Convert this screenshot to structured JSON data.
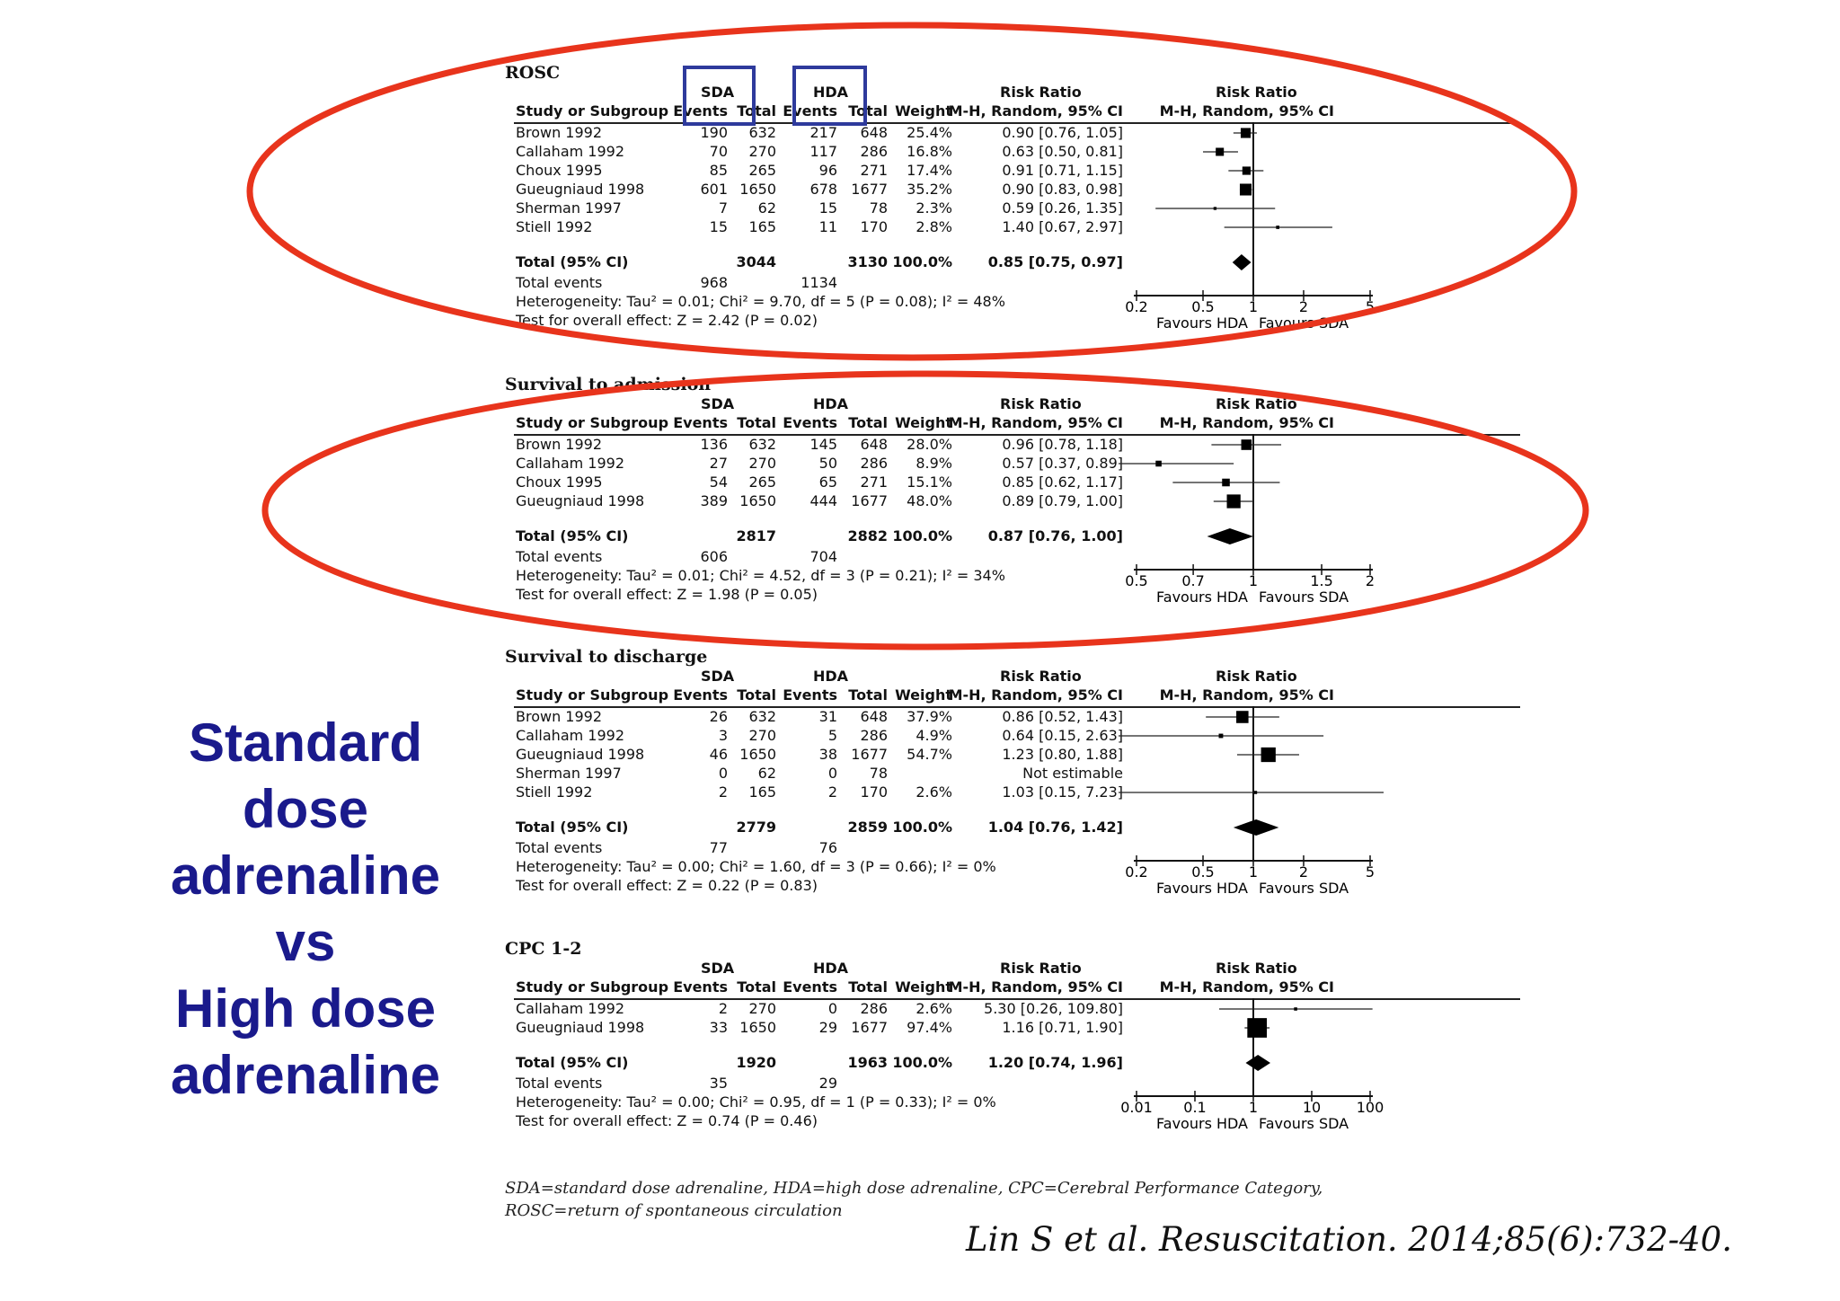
{
  "side_title": {
    "lines": [
      "Standard",
      "dose",
      "adrenaline",
      "vs",
      "High dose",
      "adrenaline"
    ]
  },
  "headers": {
    "group1": "SDA",
    "group2": "HDA",
    "study": "Study or Subgroup",
    "events": "Events",
    "total": "Total",
    "weight": "Weight",
    "rr_title": "Risk Ratio",
    "rr_method": "M-H, Random, 95% CI",
    "total_ci": "Total (95% CI)",
    "total_events": "Total events",
    "favours_left": "Favours HDA",
    "favours_right": "Favours SDA"
  },
  "chart_data": [
    {
      "type": "forest",
      "title": "ROSC",
      "studies": [
        {
          "name": "Brown 1992",
          "e1": "190",
          "t1": "632",
          "e2": "217",
          "t2": "648",
          "weight": "25.4%",
          "ci_text": "0.90 [0.76, 1.05]",
          "rr": 0.9,
          "lo": 0.76,
          "hi": 1.05,
          "w": 25.4
        },
        {
          "name": "Callaham 1992",
          "e1": "70",
          "t1": "270",
          "e2": "117",
          "t2": "286",
          "weight": "16.8%",
          "ci_text": "0.63 [0.50, 0.81]",
          "rr": 0.63,
          "lo": 0.5,
          "hi": 0.81,
          "w": 16.8
        },
        {
          "name": "Choux 1995",
          "e1": "85",
          "t1": "265",
          "e2": "96",
          "t2": "271",
          "weight": "17.4%",
          "ci_text": "0.91 [0.71, 1.15]",
          "rr": 0.91,
          "lo": 0.71,
          "hi": 1.15,
          "w": 17.4
        },
        {
          "name": "Gueugniaud 1998",
          "e1": "601",
          "t1": "1650",
          "e2": "678",
          "t2": "1677",
          "weight": "35.2%",
          "ci_text": "0.90 [0.83, 0.98]",
          "rr": 0.9,
          "lo": 0.83,
          "hi": 0.98,
          "w": 35.2
        },
        {
          "name": "Sherman 1997",
          "e1": "7",
          "t1": "62",
          "e2": "15",
          "t2": "78",
          "weight": "2.3%",
          "ci_text": "0.59 [0.26, 1.35]",
          "rr": 0.59,
          "lo": 0.26,
          "hi": 1.35,
          "w": 2.3
        },
        {
          "name": "Stiell 1992",
          "e1": "15",
          "t1": "165",
          "e2": "11",
          "t2": "170",
          "weight": "2.8%",
          "ci_text": "1.40 [0.67, 2.97]",
          "rr": 1.4,
          "lo": 0.67,
          "hi": 2.97,
          "w": 2.8
        }
      ],
      "total": {
        "t1": "3044",
        "t2": "3130",
        "weight": "100.0%",
        "ci_text": "0.85 [0.75, 0.97]",
        "rr": 0.85,
        "lo": 0.75,
        "hi": 0.97
      },
      "total_events": {
        "e1": "968",
        "e2": "1134"
      },
      "heterogeneity": "Heterogeneity: Tau² = 0.01; Chi² = 9.70, df = 5 (P = 0.08); I² = 48%",
      "overall": "Test for overall effect: Z = 2.42 (P = 0.02)",
      "axis": {
        "scale": "log",
        "min": 0.2,
        "max": 5,
        "ticks": [
          0.2,
          0.5,
          1,
          2,
          5
        ],
        "tick_labels": [
          "0.2",
          "0.5",
          "1",
          "2",
          "5"
        ]
      }
    },
    {
      "type": "forest",
      "title": "Survival to admission",
      "studies": [
        {
          "name": "Brown 1992",
          "e1": "136",
          "t1": "632",
          "e2": "145",
          "t2": "648",
          "weight": "28.0%",
          "ci_text": "0.96 [0.78, 1.18]",
          "rr": 0.96,
          "lo": 0.78,
          "hi": 1.18,
          "w": 28.0
        },
        {
          "name": "Callaham 1992",
          "e1": "27",
          "t1": "270",
          "e2": "50",
          "t2": "286",
          "weight": "8.9%",
          "ci_text": "0.57 [0.37, 0.89]",
          "rr": 0.57,
          "lo": 0.37,
          "hi": 0.89,
          "w": 8.9
        },
        {
          "name": "Choux 1995",
          "e1": "54",
          "t1": "265",
          "e2": "65",
          "t2": "271",
          "weight": "15.1%",
          "ci_text": "0.85 [0.62, 1.17]",
          "rr": 0.85,
          "lo": 0.62,
          "hi": 1.17,
          "w": 15.1
        },
        {
          "name": "Gueugniaud 1998",
          "e1": "389",
          "t1": "1650",
          "e2": "444",
          "t2": "1677",
          "weight": "48.0%",
          "ci_text": "0.89 [0.79, 1.00]",
          "rr": 0.89,
          "lo": 0.79,
          "hi": 1.0,
          "w": 48.0
        }
      ],
      "total": {
        "t1": "2817",
        "t2": "2882",
        "weight": "100.0%",
        "ci_text": "0.87 [0.76, 1.00]",
        "rr": 0.87,
        "lo": 0.76,
        "hi": 1.0
      },
      "total_events": {
        "e1": "606",
        "e2": "704"
      },
      "heterogeneity": "Heterogeneity: Tau² = 0.01; Chi² = 4.52, df = 3 (P = 0.21); I² = 34%",
      "overall": "Test for overall effect: Z = 1.98 (P = 0.05)",
      "axis": {
        "scale": "log",
        "min": 0.5,
        "max": 2,
        "ticks": [
          0.5,
          0.7,
          1,
          1.5,
          2
        ],
        "tick_labels": [
          "0.5",
          "0.7",
          "1",
          "1.5",
          "2"
        ]
      }
    },
    {
      "type": "forest",
      "title": "Survival to discharge",
      "studies": [
        {
          "name": "Brown 1992",
          "e1": "26",
          "t1": "632",
          "e2": "31",
          "t2": "648",
          "weight": "37.9%",
          "ci_text": "0.86 [0.52, 1.43]",
          "rr": 0.86,
          "lo": 0.52,
          "hi": 1.43,
          "w": 37.9
        },
        {
          "name": "Callaham 1992",
          "e1": "3",
          "t1": "270",
          "e2": "5",
          "t2": "286",
          "weight": "4.9%",
          "ci_text": "0.64 [0.15, 2.63]",
          "rr": 0.64,
          "lo": 0.15,
          "hi": 2.63,
          "w": 4.9
        },
        {
          "name": "Gueugniaud 1998",
          "e1": "46",
          "t1": "1650",
          "e2": "38",
          "t2": "1677",
          "weight": "54.7%",
          "ci_text": "1.23 [0.80, 1.88]",
          "rr": 1.23,
          "lo": 0.8,
          "hi": 1.88,
          "w": 54.7
        },
        {
          "name": "Sherman 1997",
          "e1": "0",
          "t1": "62",
          "e2": "0",
          "t2": "78",
          "weight": "",
          "ci_text": "Not estimable",
          "rr": null,
          "lo": null,
          "hi": null,
          "w": 0
        },
        {
          "name": "Stiell 1992",
          "e1": "2",
          "t1": "165",
          "e2": "2",
          "t2": "170",
          "weight": "2.6%",
          "ci_text": "1.03 [0.15, 7.23]",
          "rr": 1.03,
          "lo": 0.15,
          "hi": 7.23,
          "w": 2.6
        }
      ],
      "total": {
        "t1": "2779",
        "t2": "2859",
        "weight": "100.0%",
        "ci_text": "1.04 [0.76, 1.42]",
        "rr": 1.04,
        "lo": 0.76,
        "hi": 1.42
      },
      "total_events": {
        "e1": "77",
        "e2": "76"
      },
      "heterogeneity": "Heterogeneity: Tau² = 0.00; Chi² = 1.60, df = 3 (P = 0.66); I² = 0%",
      "overall": "Test for overall effect: Z = 0.22 (P = 0.83)",
      "axis": {
        "scale": "log",
        "min": 0.2,
        "max": 5,
        "ticks": [
          0.2,
          0.5,
          1,
          2,
          5
        ],
        "tick_labels": [
          "0.2",
          "0.5",
          "1",
          "2",
          "5"
        ]
      }
    },
    {
      "type": "forest",
      "title": "CPC 1-2",
      "studies": [
        {
          "name": "Callaham 1992",
          "e1": "2",
          "t1": "270",
          "e2": "0",
          "t2": "286",
          "weight": "2.6%",
          "ci_text": "5.30 [0.26, 109.80]",
          "rr": 5.3,
          "lo": 0.26,
          "hi": 109.8,
          "w": 2.6
        },
        {
          "name": "Gueugniaud 1998",
          "e1": "33",
          "t1": "1650",
          "e2": "29",
          "t2": "1677",
          "weight": "97.4%",
          "ci_text": "1.16 [0.71, 1.90]",
          "rr": 1.16,
          "lo": 0.71,
          "hi": 1.9,
          "w": 97.4
        }
      ],
      "total": {
        "t1": "1920",
        "t2": "1963",
        "weight": "100.0%",
        "ci_text": "1.20 [0.74, 1.96]",
        "rr": 1.2,
        "lo": 0.74,
        "hi": 1.96
      },
      "total_events": {
        "e1": "35",
        "e2": "29"
      },
      "heterogeneity": "Heterogeneity: Tau² = 0.00; Chi² = 0.95, df = 1 (P = 0.33); I² = 0%",
      "overall": "Test for overall effect: Z = 0.74 (P = 0.46)",
      "axis": {
        "scale": "log",
        "min": 0.01,
        "max": 100,
        "ticks": [
          0.01,
          0.1,
          1,
          10,
          100
        ],
        "tick_labels": [
          "0.01",
          "0.1",
          "1",
          "10",
          "100"
        ]
      }
    }
  ],
  "footnote": "SDA=standard dose adrenaline, HDA=high dose adrenaline, CPC=Cerebral Performance Category, ROSC=return of spontaneous circulation",
  "citation": "Lin S et al. Resuscitation. 2014;85(6):732-40.",
  "colors": {
    "title_blue": "#1a1a8c",
    "ellipse_red": "#e8341c",
    "box_blue": "#2e3a9c"
  }
}
